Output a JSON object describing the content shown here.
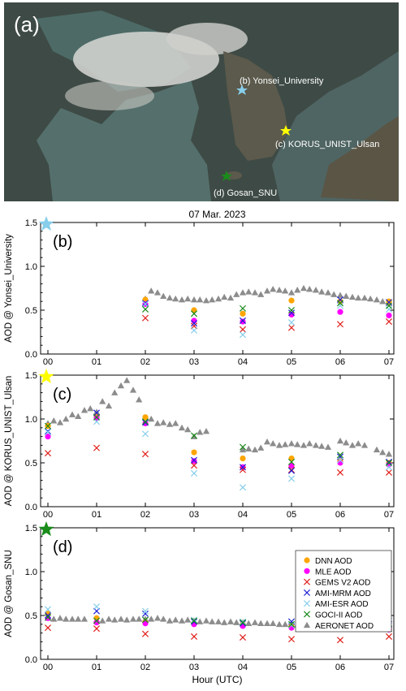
{
  "map": {
    "panel_label": "(a)",
    "sites": [
      {
        "label": "(b) Yonsei_University",
        "color": "#87ceeb"
      },
      {
        "label": "(c) KORUS_UNIST_Ulsan",
        "color": "#ffff00"
      },
      {
        "label": "(d) Gosan_SNU",
        "color": "#1a8c1a"
      }
    ]
  },
  "chart_data": {
    "type": "scatter",
    "title": "07 Mar. 2023",
    "xlabel": "Hour (UTC)",
    "x_ticks": [
      "00",
      "01",
      "02",
      "03",
      "04",
      "05",
      "06",
      "07"
    ],
    "xlim": [
      -0.15,
      7.1
    ],
    "ylim": [
      0,
      1.5
    ],
    "y_ticks": [
      "0.0",
      "0.5",
      "1.0",
      "1.5"
    ],
    "legend_position": "right (panel d)",
    "series_styles": [
      {
        "name": "DNN AOD",
        "marker": "dot",
        "color": "#ffa500"
      },
      {
        "name": "MLE AOD",
        "marker": "dot",
        "color": "#ff00ff"
      },
      {
        "name": "GEMS V2 AOD",
        "marker": "x",
        "color": "#e0201b"
      },
      {
        "name": "AMI-MRM AOD",
        "marker": "x",
        "color": "#1f1fd6"
      },
      {
        "name": "AMI-ESR AOD",
        "marker": "x",
        "color": "#87ceeb"
      },
      {
        "name": "GOCI-II AOD",
        "marker": "x",
        "color": "#1a8a1a"
      },
      {
        "name": "AERONET AOD",
        "marker": "triangle",
        "color": "#8c8c8c"
      }
    ],
    "panels": [
      {
        "label": "(b)",
        "ylabel": "AOD @ Yonsei_University",
        "star_color": "#87ceeb",
        "series": [
          {
            "name": "DNN AOD",
            "x": [
              2,
              3,
              4,
              5,
              6,
              7
            ],
            "y": [
              0.62,
              0.5,
              0.46,
              0.61,
              0.6,
              0.6
            ]
          },
          {
            "name": "MLE AOD",
            "x": [
              2,
              3,
              4,
              5,
              6,
              7
            ],
            "y": [
              0.57,
              0.38,
              0.37,
              0.45,
              0.48,
              0.44
            ]
          },
          {
            "name": "GEMS V2 AOD",
            "x": [
              2,
              3,
              4,
              5,
              6,
              7
            ],
            "y": [
              0.41,
              0.32,
              0.28,
              0.3,
              0.34,
              0.37
            ]
          },
          {
            "name": "AMI-MRM AOD",
            "x": [
              2,
              3,
              4,
              5,
              6,
              7
            ],
            "y": [
              0.58,
              0.35,
              0.38,
              0.47,
              0.62,
              0.59
            ]
          },
          {
            "name": "AMI-ESR AOD",
            "x": [
              2,
              3,
              4,
              5,
              6,
              7
            ],
            "y": [
              0.57,
              0.27,
              0.22,
              0.36,
              0.55,
              0.51
            ]
          },
          {
            "name": "GOCI-II AOD",
            "x": [
              2,
              3,
              4,
              5,
              6,
              7
            ],
            "y": [
              0.51,
              0.46,
              0.52,
              0.5,
              0.58,
              0.55
            ]
          },
          {
            "name": "AERONET AOD",
            "x": [
              2.0,
              2.12,
              2.25,
              2.37,
              2.5,
              2.62,
              2.75,
              2.87,
              3.0,
              3.12,
              3.25,
              3.37,
              3.5,
              3.62,
              3.75,
              3.87,
              4.0,
              4.12,
              4.25,
              4.37,
              4.5,
              4.62,
              4.75,
              4.87,
              5.0,
              5.12,
              5.25,
              5.37,
              5.5,
              5.62,
              5.75,
              5.87,
              6.0,
              6.12,
              6.25,
              6.37,
              6.5,
              6.62,
              6.75,
              6.87,
              7.0
            ],
            "y": [
              0.63,
              0.72,
              0.7,
              0.66,
              0.64,
              0.63,
              0.62,
              0.63,
              0.62,
              0.62,
              0.61,
              0.62,
              0.63,
              0.65,
              0.64,
              0.68,
              0.7,
              0.71,
              0.7,
              0.68,
              0.72,
              0.74,
              0.73,
              0.72,
              0.7,
              0.73,
              0.75,
              0.74,
              0.73,
              0.71,
              0.7,
              0.68,
              0.67,
              0.66,
              0.65,
              0.64,
              0.64,
              0.63,
              0.62,
              0.6,
              0.58
            ]
          }
        ]
      },
      {
        "label": "(c)",
        "ylabel": "AOD @ KORUS_UNIST_Ulsan",
        "star_color": "#ffff00",
        "series": [
          {
            "name": "DNN AOD",
            "x": [
              0,
              1,
              2,
              3,
              4,
              5,
              6,
              7
            ],
            "y": [
              0.92,
              1.03,
              1.02,
              0.62,
              0.55,
              0.55,
              0.52,
              0.5
            ]
          },
          {
            "name": "MLE AOD",
            "x": [
              0,
              1,
              2,
              3,
              4,
              5,
              6,
              7
            ],
            "y": [
              0.8,
              1.01,
              0.95,
              0.52,
              0.45,
              0.47,
              0.5,
              0.48
            ]
          },
          {
            "name": "GEMS V2 AOD",
            "x": [
              0,
              1,
              2,
              3,
              4,
              5,
              6,
              7
            ],
            "y": [
              0.61,
              0.67,
              0.6,
              0.47,
              0.42,
              0.42,
              0.39,
              0.39
            ]
          },
          {
            "name": "AMI-MRM AOD",
            "x": [
              0,
              1,
              2,
              3,
              4,
              5,
              6,
              7
            ],
            "y": [
              0.86,
              1.07,
              0.96,
              0.53,
              0.45,
              0.41,
              0.57,
              0.51
            ]
          },
          {
            "name": "AMI-ESR AOD",
            "x": [
              0,
              1,
              2,
              3,
              4,
              5,
              6,
              7
            ],
            "y": [
              0.85,
              0.97,
              0.83,
              0.38,
              0.22,
              0.32,
              0.53,
              0.45
            ]
          },
          {
            "name": "GOCI-II AOD",
            "x": [
              0,
              1,
              2,
              3,
              4,
              5,
              6,
              7
            ],
            "y": [
              0.92,
              1.02,
              0.97,
              0.81,
              0.68,
              0.51,
              0.59,
              0.5
            ]
          },
          {
            "name": "AERONET AOD",
            "x": [
              0.0,
              0.12,
              0.25,
              0.37,
              0.5,
              0.62,
              0.75,
              0.87,
              1.0,
              1.12,
              1.25,
              1.37,
              1.5,
              1.62,
              1.75,
              1.87,
              2.0,
              2.12,
              2.25,
              2.37,
              2.5,
              2.62,
              2.75,
              2.87,
              3.0,
              3.12,
              3.25,
              4.0,
              4.12,
              4.25,
              4.37,
              4.5,
              4.62,
              4.75,
              4.87,
              5.0,
              5.12,
              5.25,
              5.37,
              5.5,
              5.62,
              5.75,
              6.0,
              6.12,
              6.25,
              6.37,
              6.5,
              6.75,
              6.87,
              7.0
            ],
            "y": [
              0.95,
              0.98,
              0.96,
              1.0,
              1.05,
              1.03,
              1.1,
              1.12,
              1.08,
              1.2,
              1.15,
              1.3,
              1.38,
              1.44,
              1.33,
              1.22,
              1.02,
              1.0,
              0.95,
              0.96,
              0.94,
              0.95,
              0.9,
              0.88,
              0.8,
              0.85,
              0.86,
              0.65,
              0.66,
              0.65,
              0.67,
              0.74,
              0.72,
              0.7,
              0.71,
              0.72,
              0.71,
              0.7,
              0.72,
              0.7,
              0.69,
              0.68,
              0.75,
              0.73,
              0.7,
              0.72,
              0.7,
              0.65,
              0.62,
              0.6
            ]
          }
        ]
      },
      {
        "label": "(d)",
        "ylabel": "AOD @ Gosan_SNU",
        "star_color": "#1a8c1a",
        "series": [
          {
            "name": "DNN AOD",
            "x": [
              0,
              1,
              2,
              3,
              4,
              5,
              6,
              7
            ],
            "y": [
              0.52,
              0.47,
              0.42,
              0.41,
              0.4,
              0.38,
              0.36,
              0.36
            ]
          },
          {
            "name": "MLE AOD",
            "x": [
              0,
              1,
              2,
              3,
              4,
              5,
              6,
              7
            ],
            "y": [
              0.47,
              0.42,
              0.41,
              0.4,
              0.38,
              0.36,
              0.36,
              0.34
            ]
          },
          {
            "name": "GEMS V2 AOD",
            "x": [
              0,
              1,
              2,
              3,
              4,
              5,
              6,
              7
            ],
            "y": [
              0.36,
              0.35,
              0.29,
              0.26,
              0.25,
              0.23,
              0.22,
              0.26
            ]
          },
          {
            "name": "AMI-MRM AOD",
            "x": [
              0,
              1,
              2,
              3,
              4,
              5,
              6,
              7
            ],
            "y": [
              0.5,
              0.55,
              0.52,
              0.43,
              0.41,
              0.43,
              0.45,
              0.4
            ]
          },
          {
            "name": "AMI-ESR AOD",
            "x": [
              0,
              1,
              2,
              3,
              4,
              5,
              6,
              7
            ],
            "y": [
              0.57,
              0.6,
              0.55,
              0.45,
              0.43,
              0.39,
              0.47,
              0.44
            ]
          },
          {
            "name": "GOCI-II AOD",
            "x": [
              0,
              1,
              2,
              3,
              4,
              5,
              6,
              7
            ],
            "y": [
              0.48,
              0.44,
              0.45,
              0.44,
              0.42,
              0.4,
              0.39,
              0.35
            ]
          },
          {
            "name": "AERONET AOD",
            "x": [
              0.0,
              0.12,
              0.25,
              0.37,
              0.5,
              0.62,
              0.75,
              1.0,
              1.12,
              1.25,
              1.37,
              1.5,
              1.62,
              1.75,
              1.87,
              2.0,
              2.12,
              2.25,
              2.37,
              2.5,
              2.62,
              2.75,
              2.87,
              3.0,
              3.12,
              3.25,
              3.37,
              3.5,
              3.62,
              3.75,
              3.87,
              4.0,
              4.12,
              4.25,
              4.37,
              4.5,
              4.62,
              4.75,
              4.87,
              5.0,
              5.12,
              5.25,
              5.37,
              5.5,
              5.62,
              5.75,
              5.87,
              6.0,
              6.12,
              6.25,
              6.37,
              6.5,
              6.62,
              6.75,
              6.87,
              7.0
            ],
            "y": [
              0.47,
              0.46,
              0.47,
              0.46,
              0.46,
              0.46,
              0.46,
              0.45,
              0.44,
              0.46,
              0.45,
              0.46,
              0.45,
              0.46,
              0.46,
              0.46,
              0.46,
              0.47,
              0.46,
              0.44,
              0.45,
              0.44,
              0.45,
              0.44,
              0.43,
              0.44,
              0.43,
              0.43,
              0.42,
              0.43,
              0.42,
              0.42,
              0.41,
              0.42,
              0.41,
              0.41,
              0.41,
              0.4,
              0.4,
              0.4,
              0.39,
              0.4,
              0.39,
              0.39,
              0.4,
              0.4,
              0.39,
              0.4,
              0.4,
              0.39,
              0.4,
              0.4,
              0.4,
              0.41,
              0.4,
              0.4
            ]
          }
        ]
      }
    ]
  }
}
